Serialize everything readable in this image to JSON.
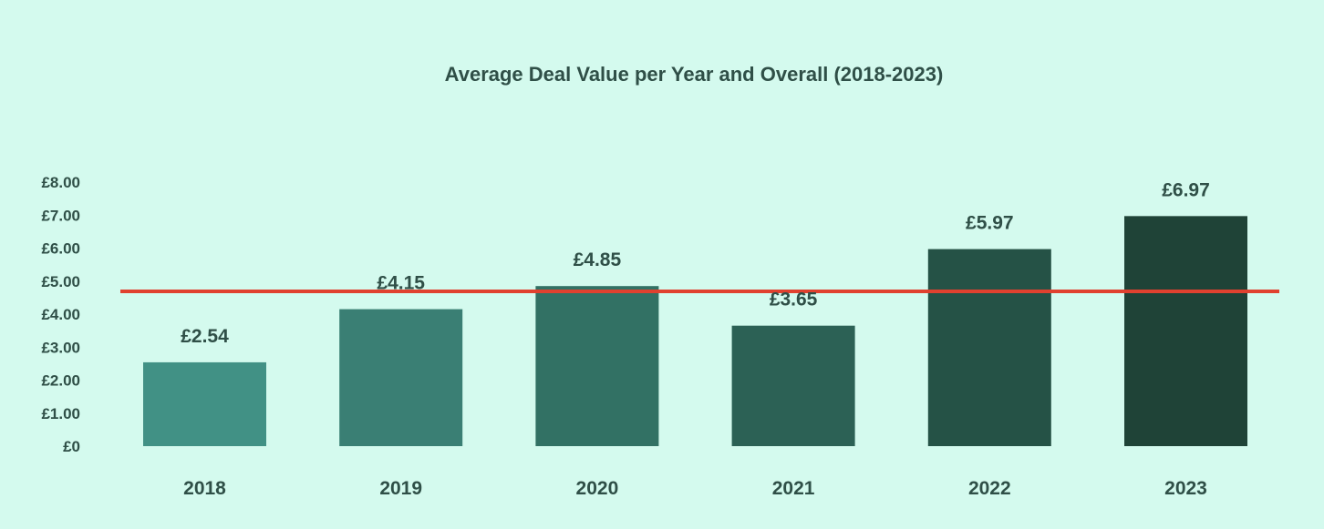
{
  "chart_data": {
    "type": "bar",
    "title": "Average Deal Value per Year and Overall (2018-2023)",
    "xlabel": "",
    "ylabel": "",
    "categories": [
      "2018",
      "2019",
      "2020",
      "2021",
      "2022",
      "2023"
    ],
    "values": [
      2.54,
      4.15,
      4.85,
      3.65,
      5.97,
      6.97
    ],
    "value_labels": [
      "£2.54",
      "£4.15",
      "£4.85",
      "£3.65",
      "£5.97",
      "£6.97"
    ],
    "bar_colors": [
      "#419185",
      "#3a7f74",
      "#327164",
      "#2c6155",
      "#255246",
      "#1f4337"
    ],
    "ylim": [
      0,
      8
    ],
    "yticks": [
      0,
      1,
      2,
      3,
      4,
      5,
      6,
      7,
      8
    ],
    "ytick_labels": [
      "£0",
      "£1.00",
      "£2.00",
      "£3.00",
      "£4.00",
      "£5.00",
      "£6.00",
      "£7.00",
      "£8.00"
    ],
    "grid": false,
    "overall_average": {
      "value": 4.69,
      "color": "#e0412f"
    }
  }
}
